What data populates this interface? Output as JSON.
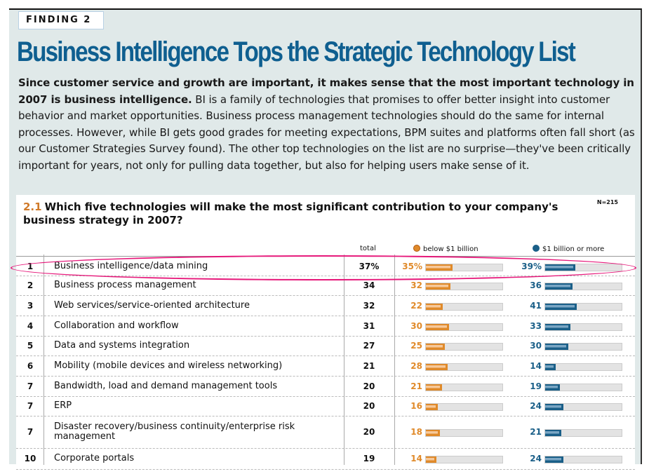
{
  "finding_label": "FINDING 2",
  "title": "Business Intelligence Tops the Strategic Technology List",
  "intro_bold": "Since customer service and growth are important, it makes sense that the most important technology in 2007 is business intelligence.",
  "intro_rest": " BI is a family of technologies that promises to offer better insight into customer behavior and market opportunities. Business process management technologies should do the same for internal processes. However, while BI gets good grades for meeting expectations, BPM suites and platforms often fall short (as our Customer Strategies Survey found). The other top technologies on the list are no surprise—they've been critically important for years, not only for pulling data together, but also for helping users make sense of it.",
  "question": {
    "number": "2.1",
    "text": "Which five technologies will make the most significant contribution to your company's business strategy in 2007?",
    "n": "N=215"
  },
  "colors": {
    "below": "#e08a2a",
    "above": "#1a5f88",
    "title": "#0f5f90",
    "highlight": "#e6187a"
  },
  "chart_data": {
    "type": "bar",
    "columns": {
      "total": "total",
      "below": "below $1 billion",
      "above": "$1 billion or more"
    },
    "xlim": [
      0,
      100
    ],
    "rows": [
      {
        "rank": "1",
        "label": "Business intelligence/data mining",
        "total": "37%",
        "below": "35%",
        "above": "39%",
        "below_v": 35,
        "above_v": 39
      },
      {
        "rank": "2",
        "label": "Business process management",
        "total": "34",
        "below": "32",
        "above": "36",
        "below_v": 32,
        "above_v": 36
      },
      {
        "rank": "3",
        "label": "Web services/service-oriented architecture",
        "total": "32",
        "below": "22",
        "above": "41",
        "below_v": 22,
        "above_v": 41
      },
      {
        "rank": "4",
        "label": "Collaboration and workflow",
        "total": "31",
        "below": "30",
        "above": "33",
        "below_v": 30,
        "above_v": 33
      },
      {
        "rank": "5",
        "label": "Data and systems integration",
        "total": "27",
        "below": "25",
        "above": "30",
        "below_v": 25,
        "above_v": 30
      },
      {
        "rank": "6",
        "label": "Mobility (mobile devices and wireless networking)",
        "total": "21",
        "below": "28",
        "above": "14",
        "below_v": 28,
        "above_v": 14
      },
      {
        "rank": "7",
        "label": "Bandwidth, load and demand management tools",
        "total": "20",
        "below": "21",
        "above": "19",
        "below_v": 21,
        "above_v": 19
      },
      {
        "rank": "7",
        "label": "ERP",
        "total": "20",
        "below": "16",
        "above": "24",
        "below_v": 16,
        "above_v": 24
      },
      {
        "rank": "7",
        "label": "Disaster recovery/business continuity/enterprise risk management",
        "total": "20",
        "below": "18",
        "above": "21",
        "below_v": 18,
        "above_v": 21
      },
      {
        "rank": "10",
        "label": "Corporate portals",
        "total": "19",
        "below": "14",
        "above": "24",
        "below_v": 14,
        "above_v": 24
      }
    ]
  }
}
